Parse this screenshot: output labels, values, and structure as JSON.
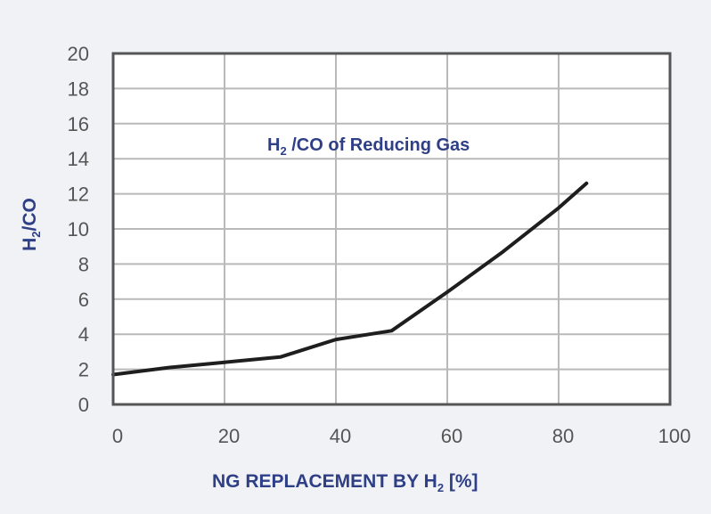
{
  "chart_data": {
    "type": "line",
    "title": "H2 /CO of Reducing Gas",
    "xlabel": "NG REPLACEMENT BY H2 [%]",
    "ylabel": "H2/CO",
    "xlim": [
      0,
      100
    ],
    "ylim": [
      0,
      20
    ],
    "x_ticks": [
      "0",
      "20",
      "40",
      "60",
      "80",
      "100"
    ],
    "y_ticks": [
      "0",
      "2",
      "4",
      "6",
      "8",
      "10",
      "12",
      "14",
      "16",
      "18",
      "20"
    ],
    "grid": true,
    "series": [
      {
        "x": [
          0,
          10,
          20,
          30,
          40,
          50,
          60,
          70,
          80,
          85
        ],
        "y": [
          1.7,
          2.1,
          2.4,
          2.7,
          3.7,
          4.2,
          6.4,
          8.7,
          11.2,
          12.6
        ]
      }
    ],
    "colors": {
      "line": "#1e1e1e",
      "frame": "#555555",
      "grid": "#b9b9b9",
      "text_accent": "#2e3f86",
      "tick_text": "#555555"
    }
  }
}
